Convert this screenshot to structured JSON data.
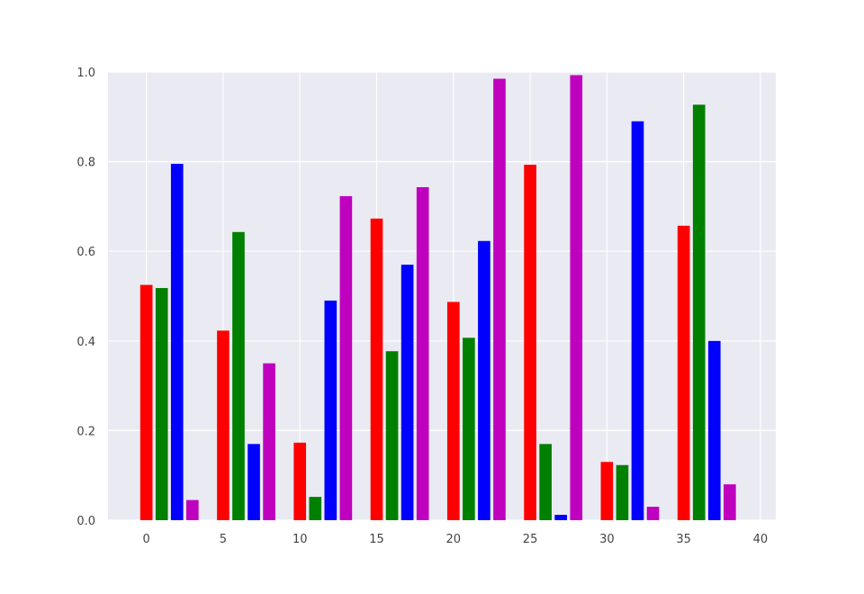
{
  "chart_data": {
    "type": "bar",
    "title": "",
    "xlabel": "",
    "ylabel": "",
    "xlim": [
      -2.5,
      41
    ],
    "ylim": [
      0,
      1.0
    ],
    "x_ticks": [
      "0",
      "5",
      "10",
      "15",
      "20",
      "25",
      "30",
      "35",
      "40"
    ],
    "x_tick_values": [
      0,
      5,
      10,
      15,
      20,
      25,
      30,
      35,
      40
    ],
    "y_ticks": [
      "0.0",
      "0.2",
      "0.4",
      "0.6",
      "0.8",
      "1.0"
    ],
    "y_tick_values": [
      0.0,
      0.2,
      0.4,
      0.6,
      0.8,
      1.0
    ],
    "grid": true,
    "background": "#eaeaf2",
    "grid_color": "#ffffff",
    "colors": [
      "#ff0000",
      "#008000",
      "#0000ff",
      "#bf00bf"
    ],
    "x": [
      0,
      1,
      2,
      3,
      5,
      6,
      7,
      8,
      10,
      11,
      12,
      13,
      15,
      16,
      17,
      18,
      20,
      21,
      22,
      23,
      25,
      26,
      27,
      28,
      30,
      31,
      32,
      33,
      35,
      36,
      37,
      38
    ],
    "values": [
      0.525,
      0.518,
      0.795,
      0.045,
      0.423,
      0.643,
      0.17,
      0.35,
      0.173,
      0.052,
      0.49,
      0.723,
      0.673,
      0.377,
      0.57,
      0.743,
      0.487,
      0.407,
      0.623,
      0.985,
      0.793,
      0.17,
      0.012,
      0.993,
      0.13,
      0.123,
      0.89,
      0.03,
      0.657,
      0.927,
      0.4,
      0.08
    ],
    "bar_colors": [
      "#ff0000",
      "#008000",
      "#0000ff",
      "#bf00bf",
      "#ff0000",
      "#008000",
      "#0000ff",
      "#bf00bf",
      "#ff0000",
      "#008000",
      "#0000ff",
      "#bf00bf",
      "#ff0000",
      "#008000",
      "#0000ff",
      "#bf00bf",
      "#ff0000",
      "#008000",
      "#0000ff",
      "#bf00bf",
      "#ff0000",
      "#008000",
      "#0000ff",
      "#bf00bf",
      "#ff0000",
      "#008000",
      "#0000ff",
      "#bf00bf",
      "#ff0000",
      "#008000",
      "#0000ff",
      "#bf00bf"
    ]
  }
}
